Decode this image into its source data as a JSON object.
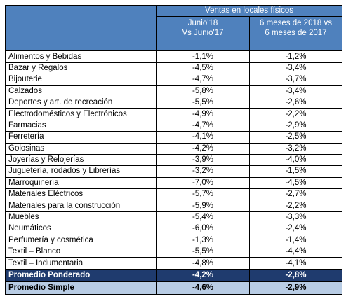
{
  "header": {
    "title": "Ventas en locales físicos",
    "columns": [
      [
        "Junio'18",
        "Vs Junio'17"
      ],
      [
        "6 meses de 2018 vs",
        "6 meses de 2017"
      ]
    ]
  },
  "table": {
    "rows": [
      [
        "Alimentos y Bebidas",
        "-1,1%",
        "-1,2%"
      ],
      [
        "Bazar  y Regalos",
        "-4,5%",
        "-3,4%"
      ],
      [
        "Bijouterie",
        "-4,7%",
        "-3,7%"
      ],
      [
        "Calzados",
        "-5,8%",
        "-3,4%"
      ],
      [
        "Deportes y art. de recreación",
        "-5,5%",
        "-2,6%"
      ],
      [
        "Electrodomésticos y Electrónicos",
        "-4,9%",
        "-2,2%"
      ],
      [
        "Farmacias",
        "-4,7%",
        "-2,9%"
      ],
      [
        "Ferretería",
        "-4,1%",
        "-2,5%"
      ],
      [
        "Golosinas",
        "-4,2%",
        "-3,2%"
      ],
      [
        "Joyerías y Relojerías",
        "-3,9%",
        "-4,0%"
      ],
      [
        "Juguetería, rodados y Librerías",
        "-3,2%",
        "-1,5%"
      ],
      [
        "Marroquinería",
        "-7,0%",
        "-4,5%"
      ],
      [
        "Materiales Eléctricos",
        "-5,7%",
        "-2,7%"
      ],
      [
        "Materiales para la construcción",
        "-5,9%",
        "-2,2%"
      ],
      [
        "Muebles",
        "-5,4%",
        "-3,3%"
      ],
      [
        "Neumáticos",
        "-6,0%",
        "-2,4%"
      ],
      [
        "Perfumería  y cosmética",
        "-1,3%",
        "-1,4%"
      ],
      [
        "Textil – Blanco",
        "-5,5%",
        "-4,4%"
      ],
      [
        "Textil – Indumentaria",
        "-4,8%",
        "-4,1%"
      ]
    ],
    "summary": [
      [
        "Promedio Ponderado",
        "-4,2%",
        "-2,8%"
      ],
      [
        "Promedio Simple",
        "-4,6%",
        "-2,9%"
      ]
    ]
  }
}
